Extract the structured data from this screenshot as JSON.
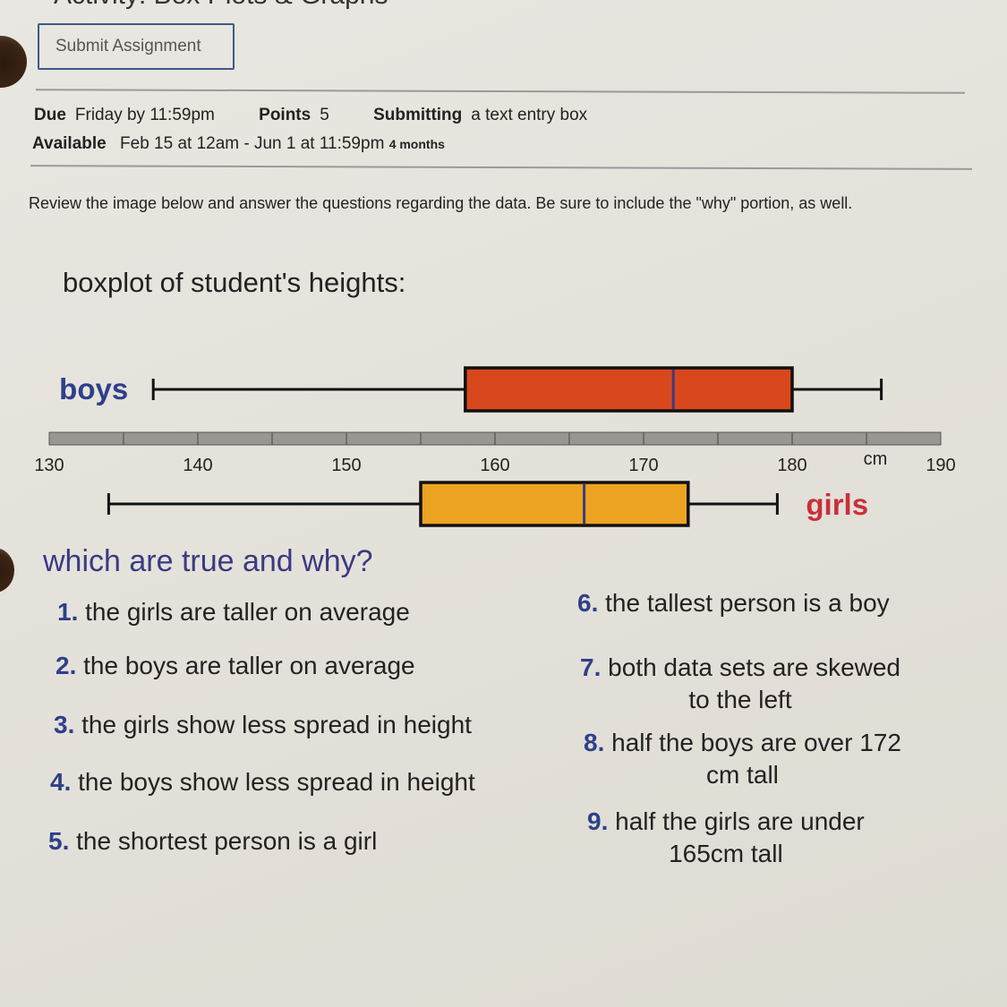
{
  "page": {
    "title": "Activity: Box Plots & Graphs",
    "submit_label": "Submit Assignment",
    "meta": {
      "due_label": "Due",
      "due_value": "Friday by 11:59pm",
      "points_label": "Points",
      "points_value": "5",
      "submitting_label": "Submitting",
      "submitting_value": "a text entry box",
      "available_label": "Available",
      "available_value": "Feb 15 at 12am - Jun 1 at 11:59pm",
      "available_duration": "4 months"
    },
    "intro": "Review the image below and answer the questions regarding the data.  Be sure to include the \"why\" portion, as well.",
    "question_heading": "which are true and why?",
    "statements": [
      {
        "n": "1.",
        "text": "the girls are taller on average"
      },
      {
        "n": "2.",
        "text": "the boys are taller on average"
      },
      {
        "n": "3.",
        "text": "the girls show less spread in height"
      },
      {
        "n": "4.",
        "text": "the boys show less spread in height"
      },
      {
        "n": "5.",
        "text": "the shortest person is a girl"
      },
      {
        "n": "6.",
        "text": "the tallest person is a boy"
      },
      {
        "n": "7.",
        "text": "both data sets are skewed\nto the left"
      },
      {
        "n": "8.",
        "text": "half the boys are over 172\ncm tall"
      },
      {
        "n": "9.",
        "text": "half the girls are under\n165cm tall"
      }
    ]
  },
  "chart_data": {
    "type": "boxplot",
    "title": "boxplot of student's heights:",
    "unit_label": "cm",
    "xlim": [
      130,
      190
    ],
    "ticks": [
      130,
      140,
      150,
      160,
      170,
      180,
      190
    ],
    "minor_tick_step": 5,
    "series": [
      {
        "name": "boys",
        "min": 137,
        "q1": 158,
        "median": 172,
        "q3": 180,
        "max": 186,
        "color": "#d9481c",
        "label_color": "#2e3f8a",
        "position": "above"
      },
      {
        "name": "girls",
        "min": 134,
        "q1": 155,
        "median": 166,
        "q3": 173,
        "max": 179,
        "color": "#eda322",
        "label_color": "#c8303a",
        "position": "below"
      }
    ],
    "axis_color": "#9a9690",
    "median_color": "#3a3a82"
  }
}
